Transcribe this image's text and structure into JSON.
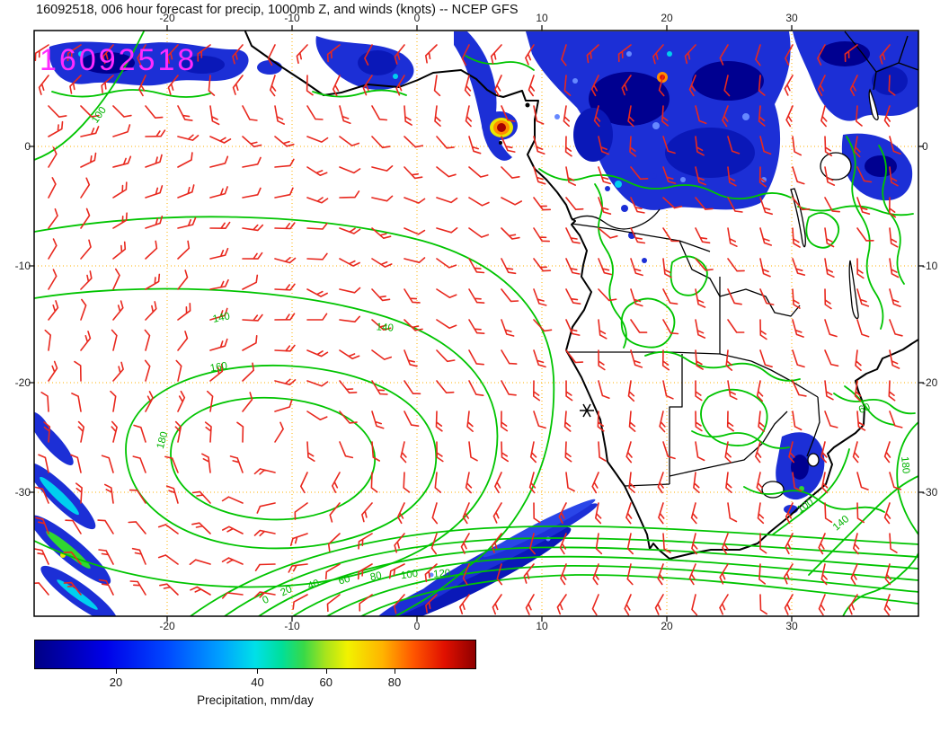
{
  "title": "16092518, 006 hour forecast for precip, 1000mb Z, and winds (knots) -- NCEP GFS",
  "watermark": "16092518",
  "chart_data": {
    "type": "weather-map",
    "description": "006 hour forecast of precipitation (shaded), 1000mb geopotential height Z (green contours) and winds in knots (red barbs) from the NCEP GFS run 16092518, over Africa and the South Atlantic",
    "model": "NCEP GFS",
    "forecast_hour": "006",
    "run": "16092518",
    "region": {
      "lon_range": [
        -31,
        40
      ],
      "lat_range": [
        -39,
        10
      ]
    },
    "x_ticks": [
      "-20",
      "-10",
      "0",
      "10",
      "20",
      "30"
    ],
    "y_ticks": [
      "0",
      "-10",
      "-20",
      "-30"
    ],
    "fields": {
      "shaded": "precipitation (mm/day)",
      "contours": "1000mb geopotential height Z",
      "vectors": "winds (knots)"
    },
    "contour_labels": {
      "h100": "100",
      "h140a": "140",
      "h140b": "140",
      "h160": "160",
      "h180": "180",
      "g0": "0",
      "g20": "20",
      "g40": "40",
      "g60": "60",
      "g80": "80",
      "g100": "100",
      "g120": "120",
      "r60": "60",
      "r100": "100",
      "r140": "140",
      "r180": "180"
    }
  },
  "colorbar": {
    "label": "Precipitation, mm/day",
    "ticks": [
      {
        "label": "20",
        "pos": 18.5
      },
      {
        "label": "40",
        "pos": 50.5
      },
      {
        "label": "60",
        "pos": 66.0
      },
      {
        "label": "80",
        "pos": 81.5
      }
    ],
    "stops": [
      {
        "c": "#000085",
        "p": 0
      },
      {
        "c": "#0000e8",
        "p": 16
      },
      {
        "c": "#0048ff",
        "p": 30
      },
      {
        "c": "#00a0ff",
        "p": 42
      },
      {
        "c": "#00e0e8",
        "p": 50
      },
      {
        "c": "#00df9a",
        "p": 56
      },
      {
        "c": "#38d948",
        "p": 61
      },
      {
        "c": "#a8e41c",
        "p": 66
      },
      {
        "c": "#f2f200",
        "p": 71
      },
      {
        "c": "#ffb300",
        "p": 79
      },
      {
        "c": "#ff5500",
        "p": 86
      },
      {
        "c": "#e01000",
        "p": 93
      },
      {
        "c": "#8f0000",
        "p": 100
      }
    ]
  },
  "wind": {
    "color": "#e8281e",
    "barb_length": 17
  },
  "colors": {
    "contour_green": "#00c400",
    "contour_label_green": "#00b400",
    "coastline": "#000000",
    "graticule": "#ffb000",
    "watermark_magenta": "#ff2bff",
    "precip_blue": "#1c2fd6",
    "frame": "#000000"
  },
  "icons": {
    "station_marker": "asterisk"
  }
}
